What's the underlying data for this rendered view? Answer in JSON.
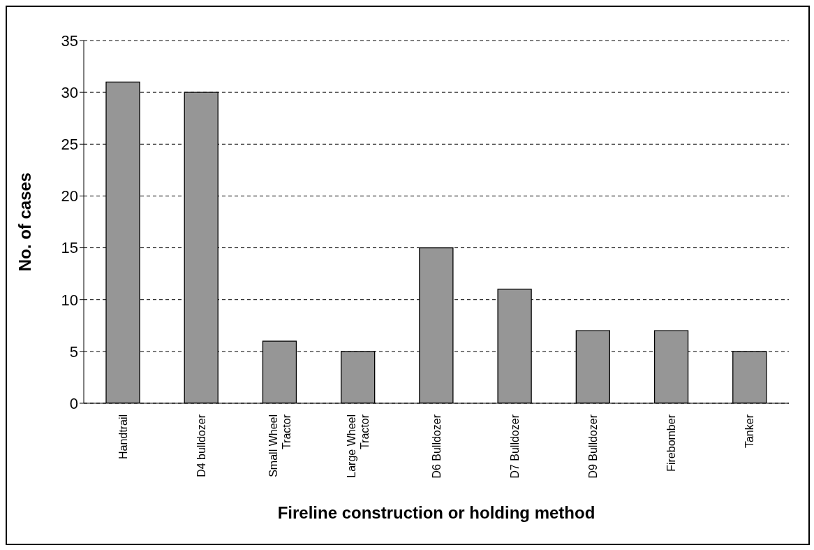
{
  "chart_data": {
    "type": "bar",
    "xlabel": "Fireline construction or holding method",
    "ylabel": "No. of cases",
    "categories": [
      "Handtrail",
      "D4 bulldozer",
      "Small Wheel Tractor",
      "Large Wheel Tractor",
      "D6 Bulldozer",
      "D7 Bulldozer",
      "D9 Bulldozer",
      "Firebomber",
      "Tanker"
    ],
    "values": [
      31,
      30,
      6,
      5,
      15,
      11,
      7,
      7,
      5
    ],
    "color": "#969696",
    "ylim": [
      0,
      35
    ],
    "yticks": [
      0,
      5,
      10,
      15,
      20,
      25,
      30,
      35
    ],
    "grid": "y",
    "legend": false
  }
}
